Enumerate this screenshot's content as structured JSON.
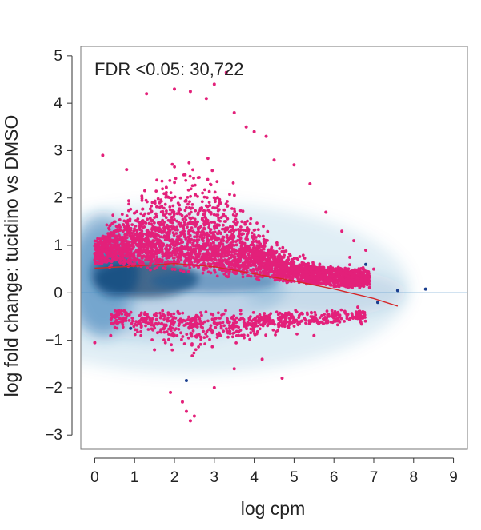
{
  "chart_data": {
    "type": "scatter",
    "title": "",
    "annotation": "FDR <0.05: 30,722",
    "xlabel": "log cpm",
    "ylabel": "log fold change: tucidino vs DMSO",
    "xlim": [
      -0.35,
      9.35
    ],
    "ylim": [
      -3.3,
      5.2
    ],
    "x_ticks": [
      0,
      1,
      2,
      3,
      4,
      5,
      6,
      7,
      8,
      9
    ],
    "x_tick_labels": [
      "0",
      "1",
      "2",
      "3",
      "4",
      "5",
      "6",
      "7",
      "8",
      "9"
    ],
    "y_ticks": [
      5,
      4,
      3,
      2,
      1,
      0,
      -1,
      -2,
      -3
    ],
    "y_tick_labels": [
      "5",
      "4",
      "3",
      "2",
      "1",
      "0",
      "−1",
      "−2",
      "−3"
    ],
    "grid": false,
    "legend": "none",
    "zero_line": {
      "y": 0,
      "color": "#4a90c8"
    },
    "trend_line": {
      "color": "#d62728",
      "x": [
        0,
        1,
        2,
        3,
        4,
        5,
        6,
        7,
        7.6
      ],
      "y": [
        0.52,
        0.56,
        0.62,
        0.55,
        0.4,
        0.25,
        0.08,
        -0.12,
        -0.28
      ]
    },
    "density_color": "#1f6fb0",
    "significant_color": "#e3207a",
    "significant_points": [
      [
        0.2,
        2.9
      ],
      [
        0.8,
        2.6
      ],
      [
        1.3,
        4.2
      ],
      [
        2.0,
        4.3
      ],
      [
        2.4,
        4.25
      ],
      [
        2.8,
        4.1
      ],
      [
        3.0,
        4.4
      ],
      [
        3.3,
        4.65
      ],
      [
        3.5,
        3.8
      ],
      [
        3.8,
        3.5
      ],
      [
        4.0,
        3.4
      ],
      [
        4.3,
        3.3
      ],
      [
        4.5,
        2.8
      ],
      [
        5.0,
        2.7
      ],
      [
        5.4,
        2.3
      ],
      [
        5.8,
        1.7
      ],
      [
        6.2,
        1.3
      ],
      [
        6.5,
        1.1
      ],
      [
        6.8,
        0.9
      ],
      [
        7.0,
        0.5
      ],
      [
        6.4,
        0.75
      ],
      [
        0.0,
        -1.05
      ],
      [
        0.4,
        -0.9
      ],
      [
        1.5,
        -1.2
      ],
      [
        1.9,
        -2.1
      ],
      [
        2.2,
        -2.3
      ],
      [
        2.3,
        -2.5
      ],
      [
        2.4,
        -2.7
      ],
      [
        2.5,
        -2.6
      ],
      [
        3.0,
        -2.0
      ],
      [
        3.5,
        -1.6
      ],
      [
        4.2,
        -1.4
      ],
      [
        4.7,
        -1.8
      ],
      [
        5.5,
        -0.9
      ],
      [
        6.0,
        -0.6
      ],
      [
        6.6,
        -0.3
      ]
    ],
    "non_significant_outliers": [
      [
        6.8,
        0.6
      ],
      [
        7.6,
        0.05
      ],
      [
        8.3,
        0.08
      ],
      [
        7.1,
        -0.2
      ],
      [
        0.9,
        -0.75
      ],
      [
        2.3,
        -1.85
      ]
    ]
  }
}
